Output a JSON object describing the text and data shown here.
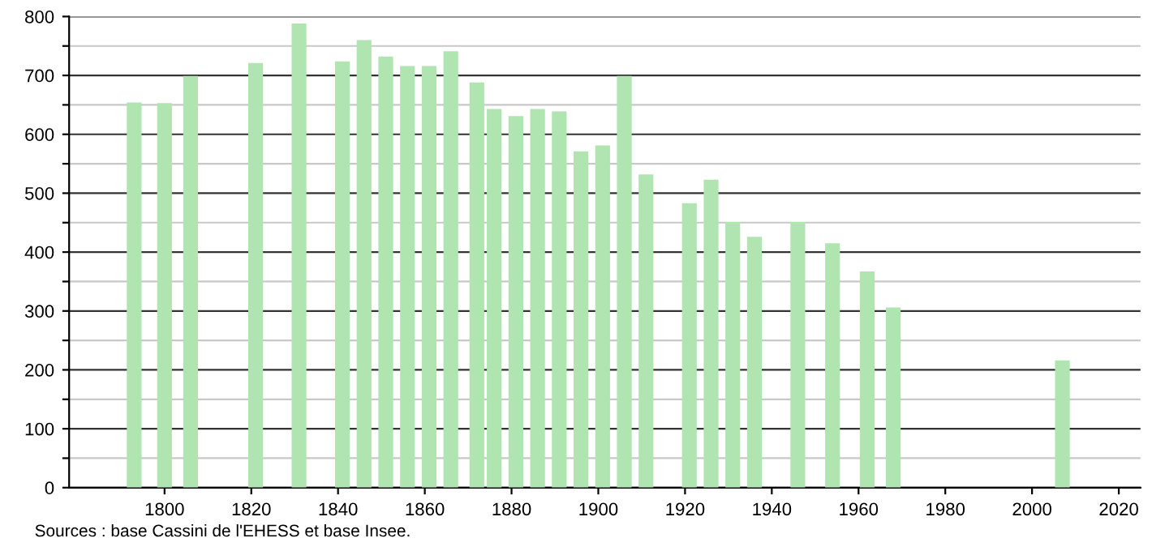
{
  "chart_data": {
    "type": "bar",
    "x": [
      1793,
      1800,
      1806,
      1821,
      1831,
      1841,
      1846,
      1851,
      1856,
      1861,
      1866,
      1872,
      1876,
      1881,
      1886,
      1891,
      1896,
      1901,
      1906,
      1911,
      1921,
      1926,
      1931,
      1936,
      1946,
      1954,
      1962,
      1968,
      2007
    ],
    "values": [
      654,
      653,
      699,
      721,
      788,
      724,
      760,
      732,
      716,
      716,
      741,
      688,
      643,
      631,
      643,
      639,
      571,
      581,
      699,
      532,
      483,
      523,
      451,
      426,
      451,
      415,
      367,
      306,
      216
    ],
    "color": "#b0e4b0",
    "xlim": [
      1778,
      2025
    ],
    "xticks": [
      1800,
      1820,
      1840,
      1860,
      1880,
      1900,
      1920,
      1940,
      1960,
      1980,
      2000,
      2020
    ],
    "ylim": [
      0,
      800
    ],
    "yticks": [
      0,
      {
        "value": 50,
        "label": null
      },
      100,
      {
        "value": 150,
        "label": null
      },
      200,
      {
        "value": 250,
        "label": null
      },
      300,
      {
        "value": 350,
        "label": null
      },
      400,
      {
        "value": 450,
        "label": null
      },
      500,
      {
        "value": 550,
        "label": null
      },
      600,
      {
        "value": 650,
        "label": null
      },
      700,
      {
        "value": 750,
        "label": null
      },
      800
    ],
    "grid": "y",
    "annotations": [
      "Sources : base Cassini de l'EHESS et base Insee."
    ]
  }
}
